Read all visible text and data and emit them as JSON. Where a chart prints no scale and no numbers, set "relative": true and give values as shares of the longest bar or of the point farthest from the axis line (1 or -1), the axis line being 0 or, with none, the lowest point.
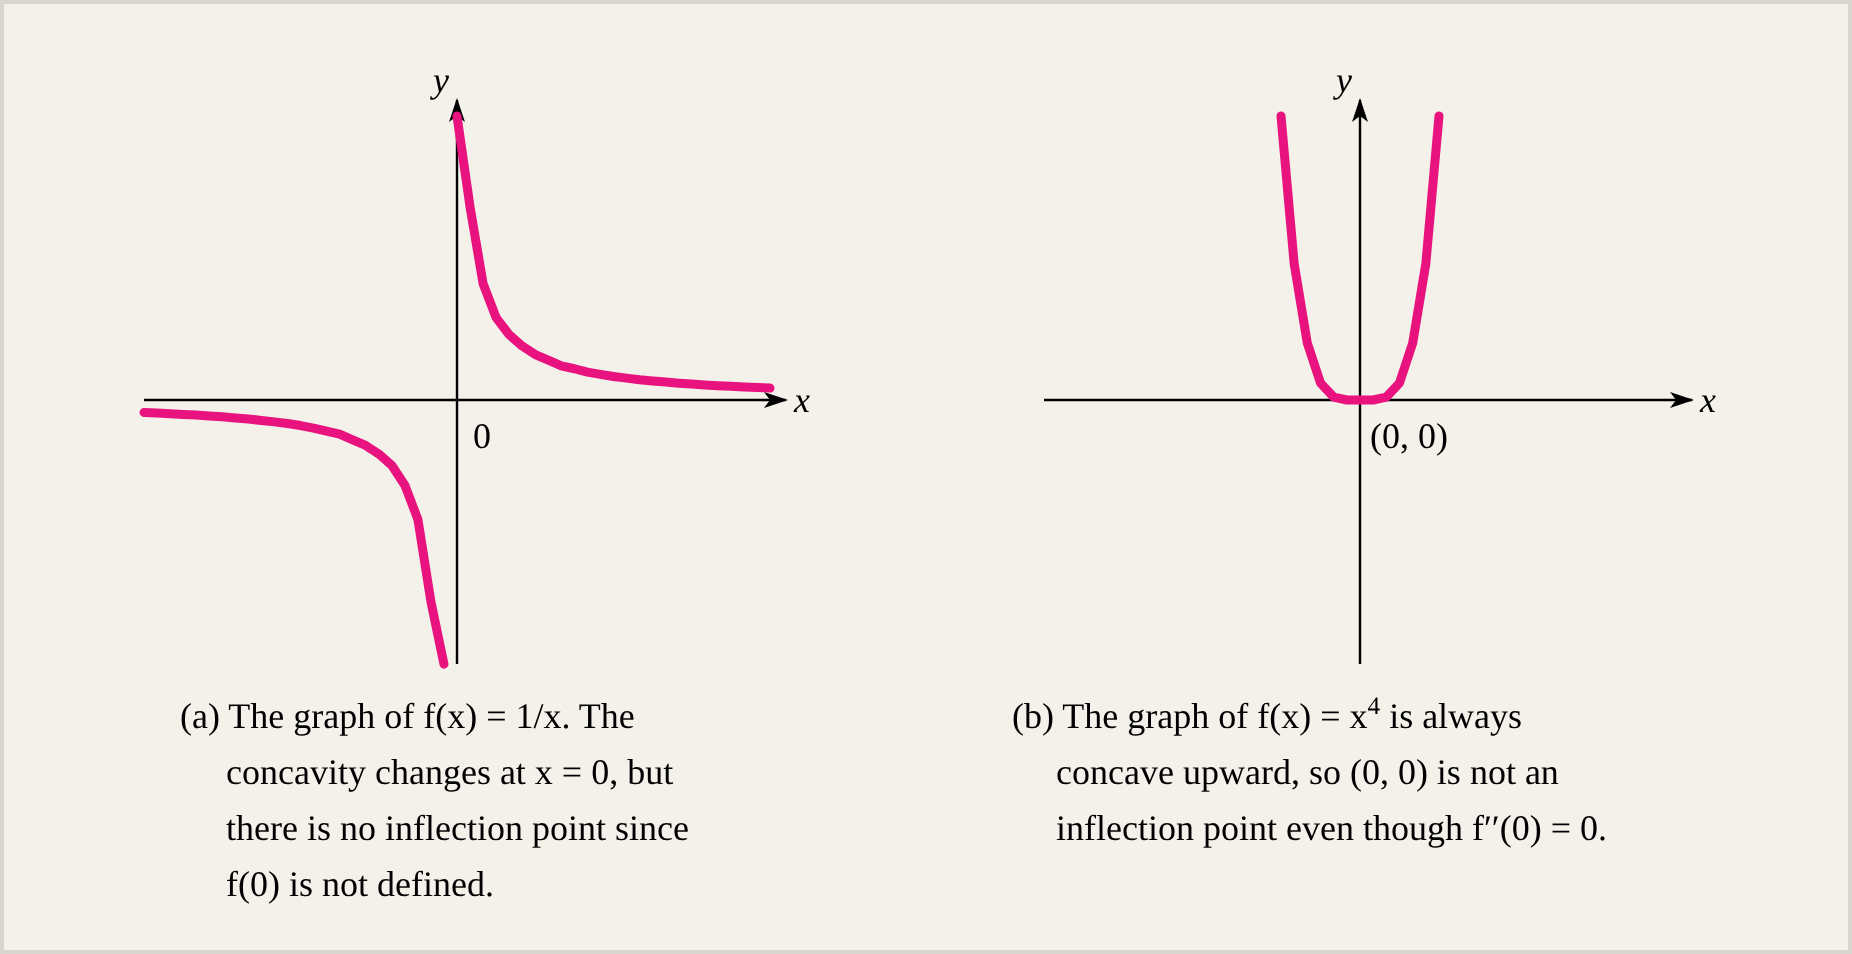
{
  "chart_data": [
    {
      "type": "line",
      "relative": true,
      "xlabel": "x",
      "ylabel": "y",
      "categories": [
        null,
        null,
        null,
        null,
        null,
        null,
        null,
        null,
        null,
        null,
        null,
        null,
        null,
        null,
        null,
        null,
        null,
        null,
        null,
        null,
        null,
        null,
        null,
        null,
        null,
        null,
        null,
        null,
        null,
        null,
        null,
        null,
        null,
        null,
        null,
        null,
        null,
        null,
        null,
        null,
        null,
        null,
        null,
        null,
        null,
        null,
        null,
        null,
        null
      ],
      "series": [
        {
          "color": "#e8137f",
          "values": [
            -0.044,
            -0.046,
            -0.048,
            -0.051,
            -0.053,
            -0.056,
            -0.059,
            -0.063,
            -0.067,
            -0.072,
            -0.077,
            -0.083,
            -0.09,
            -0.099,
            -0.11,
            -0.12,
            -0.14,
            -0.16,
            -0.19,
            -0.23,
            -0.3,
            -0.42,
            -0.71,
            -0.93,
            null,
            null,
            null,
            null,
            null,
            null,
            null,
            null,
            null,
            null,
            null,
            null,
            null,
            null,
            null,
            null,
            null,
            null,
            null,
            null,
            null,
            null,
            null,
            null,
            null
          ]
        },
        {
          "color": "#e8137f",
          "values": [
            null,
            null,
            null,
            null,
            null,
            null,
            null,
            null,
            null,
            null,
            null,
            null,
            null,
            null,
            null,
            null,
            null,
            null,
            null,
            null,
            null,
            null,
            null,
            null,
            1,
            0.68,
            0.41,
            0.29,
            0.23,
            0.19,
            0.16,
            0.14,
            0.12,
            0.11,
            0.098,
            0.09,
            0.083,
            0.077,
            0.071,
            0.067,
            0.063,
            0.059,
            0.056,
            0.053,
            0.05,
            0.048,
            0.046,
            0.044,
            0.042
          ]
        }
      ],
      "annotations": [
        "0",
        "(a) The graph of f(x) = 1/x. The concavity changes at x = 0, but there is no inflection point since f(0) is not defined."
      ]
    },
    {
      "type": "line",
      "relative": true,
      "xlabel": "x",
      "ylabel": "y",
      "categories": [
        null,
        null,
        null,
        null,
        null,
        null,
        null,
        null,
        null,
        null,
        null,
        null,
        null,
        null,
        null,
        null,
        null,
        null,
        null,
        null,
        null,
        null,
        null,
        null,
        null,
        null,
        null,
        null,
        null,
        null,
        null,
        null,
        null,
        null,
        null,
        null,
        null,
        null,
        null,
        null,
        null,
        null,
        null,
        null,
        null,
        null,
        null,
        null,
        null
      ],
      "series": [
        {
          "color": "#e8137f",
          "values": [
            null,
            null,
            null,
            null,
            null,
            null,
            null,
            null,
            null,
            null,
            null,
            null,
            null,
            null,
            null,
            null,
            null,
            null,
            1,
            0.48,
            0.2,
            0.06,
            0.01,
            0,
            0,
            0,
            0.01,
            0.06,
            0.2,
            0.48,
            1,
            null,
            null,
            null,
            null,
            null,
            null,
            null,
            null,
            null,
            null,
            null,
            null,
            null,
            null,
            null,
            null,
            null,
            null
          ]
        }
      ],
      "annotations": [
        "(0, 0)",
        "(b) The graph of f(x) = x$^{4}$ is always concave upward, so (0, 0) is not an inflection point even though f′′(0) = 0."
      ]
    }
  ]
}
